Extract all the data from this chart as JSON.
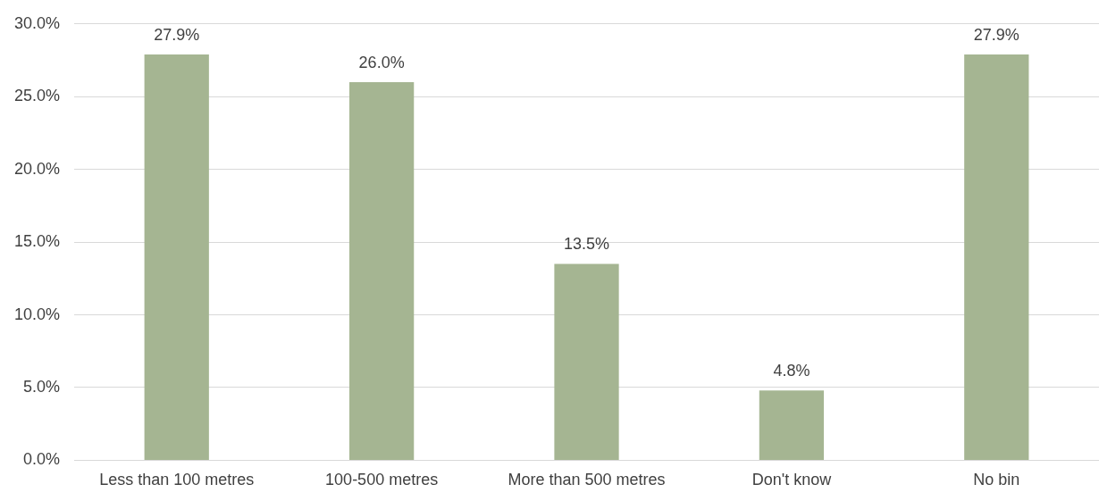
{
  "chart_data": {
    "type": "bar",
    "categories": [
      "Less than 100 metres",
      "100-500 metres",
      "More than 500 metres",
      "Don't know",
      "No bin"
    ],
    "values": [
      27.9,
      26.0,
      13.5,
      4.8,
      27.9
    ],
    "value_labels": [
      "27.9%",
      "26.0%",
      "13.5%",
      "4.8%",
      "27.9%"
    ],
    "color": "#a5b592",
    "ylim": [
      0,
      30
    ],
    "yticks": [
      {
        "value": 0,
        "label": "0.0%"
      },
      {
        "value": 5,
        "label": "5.0%"
      },
      {
        "value": 10,
        "label": "10.0%"
      },
      {
        "value": 15,
        "label": "15.0%"
      },
      {
        "value": 20,
        "label": "20.0%"
      },
      {
        "value": 25,
        "label": "25.0%"
      },
      {
        "value": 30,
        "label": "30.0%"
      }
    ],
    "grid": "y",
    "legend": false
  }
}
